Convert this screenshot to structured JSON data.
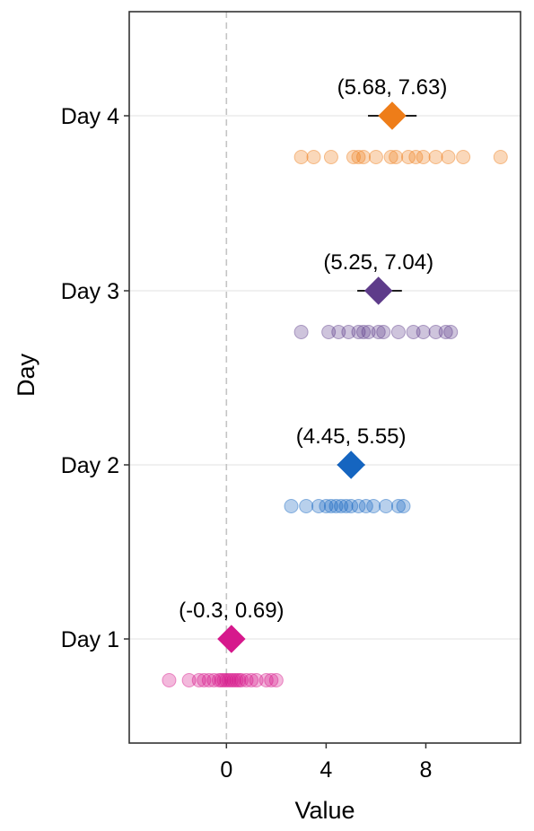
{
  "chart_data": {
    "type": "scatter",
    "title": "",
    "xlabel": "Value",
    "ylabel": "Day",
    "xlim": [
      -3.9,
      11.8
    ],
    "x_ticks": [
      0,
      4,
      8
    ],
    "x_tick_labels": [
      "0",
      "4",
      "8"
    ],
    "reference_line_x": 0,
    "gridlines": "horizontal at each day",
    "categories": [
      "Day 1",
      "Day 2",
      "Day 3",
      "Day 4"
    ],
    "series": [
      {
        "category": "Day 1",
        "color": "#d6188c",
        "mean": 0.2,
        "ci": [
          -0.3,
          0.69
        ],
        "ci_label": "(-0.3, 0.69)",
        "points": [
          -2.3,
          -1.5,
          -1.1,
          -0.9,
          -0.7,
          -0.5,
          -0.3,
          -0.2,
          -0.1,
          0.0,
          0.1,
          0.2,
          0.3,
          0.4,
          0.5,
          0.6,
          0.8,
          1.0,
          1.2,
          1.6,
          1.8,
          2.0
        ]
      },
      {
        "category": "Day 2",
        "color": "#1565c0",
        "mean": 5.0,
        "ci": [
          4.45,
          5.55
        ],
        "ci_label": "(4.45, 5.55)",
        "points": [
          2.6,
          3.2,
          3.7,
          4.0,
          4.2,
          4.4,
          4.6,
          4.8,
          5.0,
          5.3,
          5.6,
          5.9,
          6.4,
          6.9,
          7.1
        ]
      },
      {
        "category": "Day 3",
        "color": "#5e3c8a",
        "mean": 6.1,
        "ci": [
          5.25,
          7.04
        ],
        "ci_label": "(5.25, 7.04)",
        "points": [
          3.0,
          4.1,
          4.5,
          4.9,
          5.3,
          5.5,
          5.7,
          6.1,
          6.3,
          6.9,
          7.5,
          7.9,
          8.4,
          8.8,
          9.0
        ]
      },
      {
        "category": "Day 4",
        "color": "#ee7d19",
        "mean": 6.65,
        "ci": [
          5.68,
          7.63
        ],
        "ci_label": "(5.68, 7.63)",
        "points": [
          3.0,
          3.5,
          4.2,
          5.1,
          5.3,
          5.5,
          6.0,
          6.6,
          6.8,
          7.3,
          7.6,
          7.9,
          8.4,
          8.9,
          9.5,
          11.0
        ]
      }
    ]
  }
}
